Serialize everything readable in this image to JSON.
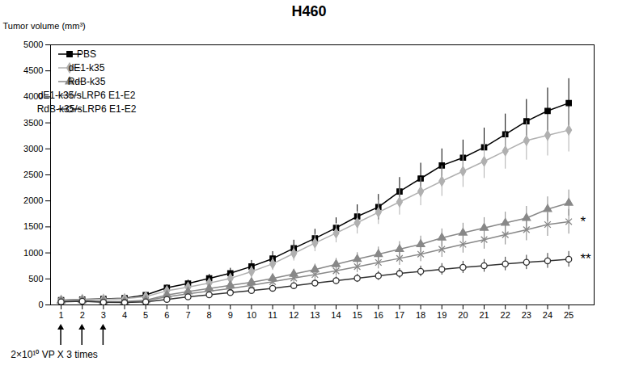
{
  "chart_data": {
    "type": "line",
    "title": "H460",
    "ylabel": "Tumor volume (mm³)",
    "x": [
      1,
      2,
      3,
      4,
      5,
      6,
      7,
      8,
      9,
      10,
      11,
      12,
      13,
      14,
      15,
      16,
      17,
      18,
      19,
      20,
      21,
      22,
      23,
      24,
      25
    ],
    "xlim": [
      0.5,
      26.2
    ],
    "xticks": [
      1,
      2,
      3,
      4,
      5,
      6,
      7,
      8,
      9,
      10,
      11,
      12,
      13,
      14,
      15,
      16,
      17,
      18,
      19,
      20,
      21,
      22,
      23,
      24,
      25
    ],
    "ylim": [
      0,
      5000
    ],
    "yticks": [
      0,
      500,
      1000,
      1500,
      2000,
      2500,
      3000,
      3500,
      4000,
      4500,
      5000
    ],
    "grid": false,
    "legend": "upper left",
    "series": [
      {
        "name": "PBS",
        "color": "#000000",
        "marker": "square",
        "values": [
          90,
          105,
          115,
          130,
          190,
          330,
          410,
          510,
          610,
          740,
          890,
          1090,
          1280,
          1480,
          1700,
          1880,
          2180,
          2430,
          2680,
          2830,
          3030,
          3280,
          3530,
          3730,
          3880
        ],
        "yerr": [
          20,
          22,
          22,
          28,
          38,
          58,
          68,
          78,
          95,
          115,
          135,
          155,
          175,
          195,
          225,
          245,
          270,
          295,
          320,
          340,
          370,
          390,
          420,
          440,
          470
        ]
      },
      {
        "name": "dE1-k35",
        "color": "#b0b0b0",
        "marker": "diamond",
        "values": [
          90,
          105,
          110,
          120,
          160,
          270,
          340,
          420,
          510,
          640,
          790,
          990,
          1190,
          1380,
          1580,
          1780,
          1980,
          2180,
          2380,
          2570,
          2760,
          2960,
          3160,
          3260,
          3360
        ],
        "yerr": [
          18,
          20,
          20,
          22,
          32,
          48,
          58,
          68,
          86,
          105,
          125,
          145,
          165,
          185,
          215,
          232,
          252,
          272,
          292,
          310,
          328,
          348,
          375,
          395,
          418
        ]
      },
      {
        "name": "RdB-k35",
        "color": "#888888",
        "marker": "triangle",
        "values": [
          80,
          90,
          70,
          65,
          90,
          190,
          255,
          315,
          375,
          435,
          510,
          595,
          680,
          780,
          880,
          975,
          1070,
          1165,
          1290,
          1385,
          1480,
          1575,
          1670,
          1840,
          1960
        ],
        "yerr": [
          18,
          20,
          18,
          16,
          18,
          33,
          42,
          52,
          62,
          72,
          82,
          90,
          105,
          115,
          125,
          138,
          148,
          158,
          172,
          186,
          198,
          210,
          224,
          238,
          250
        ]
      },
      {
        "name": "dE1-k35/sLRP6 E1-E2",
        "color": "#888888",
        "marker": "times",
        "values": [
          75,
          85,
          65,
          55,
          80,
          155,
          215,
          265,
          315,
          375,
          445,
          515,
          582,
          655,
          735,
          815,
          895,
          975,
          1070,
          1165,
          1255,
          1350,
          1445,
          1545,
          1600
        ],
        "yerr": [
          15,
          18,
          15,
          14,
          16,
          28,
          36,
          43,
          52,
          62,
          72,
          82,
          92,
          102,
          112,
          122,
          132,
          142,
          155,
          168,
          182,
          195,
          210,
          225,
          237
        ]
      },
      {
        "name": "RdB-k35/sLRP6 E1-E2",
        "color": "#333333",
        "marker": "circle-open",
        "values": [
          60,
          70,
          50,
          45,
          60,
          105,
          155,
          195,
          235,
          275,
          320,
          370,
          418,
          465,
          512,
          558,
          604,
          645,
          685,
          722,
          752,
          788,
          818,
          848,
          878
        ],
        "yerr": [
          14,
          15,
          13,
          12,
          13,
          20,
          26,
          32,
          38,
          44,
          50,
          57,
          65,
          73,
          80,
          87,
          95,
          102,
          110,
          117,
          122,
          130,
          137,
          143,
          150
        ]
      }
    ],
    "annotations": [
      {
        "text": "*",
        "x": 25.55,
        "y": 1600
      },
      {
        "text": "**",
        "x": 25.55,
        "y": 878
      },
      {
        "text": "2×10¹⁰ VP X 3 times",
        "arrows": [
          1,
          2,
          3
        ]
      }
    ]
  }
}
